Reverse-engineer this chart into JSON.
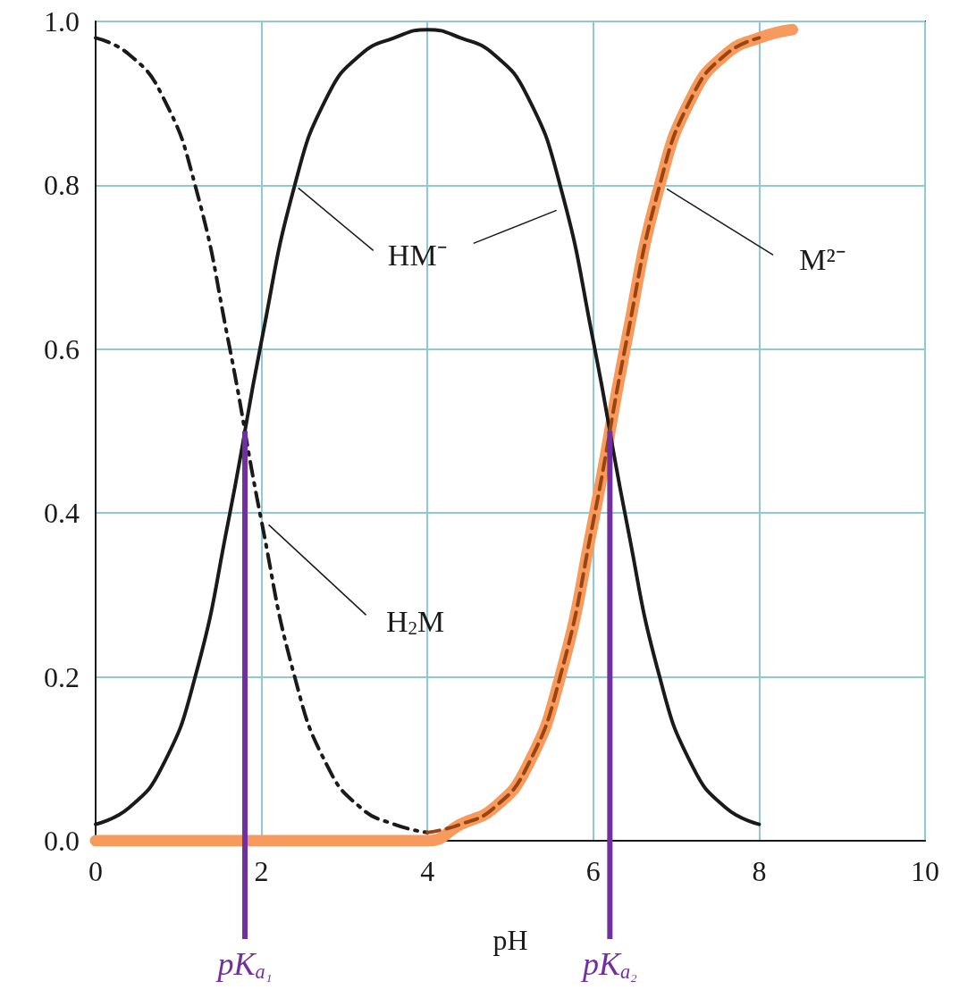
{
  "chart_data": {
    "type": "line",
    "xlabel": "pH",
    "xlim": [
      0,
      10
    ],
    "xticks": [
      0,
      2,
      4,
      6,
      8,
      10
    ],
    "ylim": [
      0,
      1
    ],
    "yticks": [
      {
        "value": 0,
        "label": "0.0"
      },
      {
        "value": 0.2,
        "label": "0.2"
      },
      {
        "value": 0.4,
        "label": "0.4"
      },
      {
        "value": 0.6,
        "label": "0.6"
      },
      {
        "value": 0.8,
        "label": "0.8"
      },
      {
        "value": 1,
        "label": "1.0"
      }
    ],
    "grid": true,
    "series": [
      {
        "color": "#f79a5e",
        "line_style": "solid",
        "x": [
          0,
          4,
          4.4,
          4.8,
          5.2,
          5.6,
          6,
          6.4,
          6.8,
          7.2,
          7.6,
          8,
          8.4
        ],
        "values": [
          0,
          0,
          0.02,
          0.04,
          0.09,
          0.2,
          0.39,
          0.61,
          0.8,
          0.91,
          0.96,
          0.98,
          0.99
        ]
      },
      {
        "color": "#1a1a1a",
        "line_style": "dashdot",
        "x": [
          0,
          0.4,
          0.8,
          1.2,
          1.6,
          2,
          2.4,
          2.8,
          3.2,
          3.6,
          4
        ],
        "values": [
          0.98,
          0.96,
          0.91,
          0.8,
          0.61,
          0.39,
          0.2,
          0.09,
          0.04,
          0.02,
          0.01
        ]
      },
      {
        "color": "#1a1a1a",
        "line_style": "solid",
        "x": [
          0,
          0.4,
          0.8,
          1.2,
          1.6,
          2,
          2.4,
          2.8,
          3.2,
          3.6,
          4,
          4.4,
          4.8,
          5.2,
          5.6,
          6,
          6.4,
          6.8,
          7.2,
          7.6,
          8
        ],
        "values": [
          0.02,
          0.04,
          0.09,
          0.2,
          0.39,
          0.61,
          0.8,
          0.91,
          0.96,
          0.98,
          0.99,
          0.98,
          0.96,
          0.91,
          0.8,
          0.61,
          0.39,
          0.2,
          0.09,
          0.04,
          0.02
        ]
      },
      {
        "color": "#9c4410",
        "line_style": "dashed",
        "x": [
          4,
          4.4,
          4.8,
          5.2,
          5.6,
          6,
          6.4,
          6.8,
          7.2,
          7.6,
          8
        ],
        "values": [
          0.01,
          0.02,
          0.04,
          0.09,
          0.2,
          0.39,
          0.61,
          0.8,
          0.91,
          0.96,
          0.98
        ]
      }
    ],
    "annotations": [
      {
        "text": "HM⁻",
        "x": 2.4,
        "y": 0.8
      },
      {
        "text": "H$_{2}$M",
        "x": 2,
        "y": 0.39
      },
      {
        "text": "M²⁻",
        "x": 6.8,
        "y": 0.8
      }
    ],
    "ref_lines": [
      {
        "axis": "x",
        "value": 1.8,
        "label": "pK$_{a₁}$",
        "color": "#7030a0"
      },
      {
        "axis": "x",
        "value": 6.2,
        "label": "pK$_{a₂}$",
        "color": "#7030a0"
      }
    ]
  }
}
